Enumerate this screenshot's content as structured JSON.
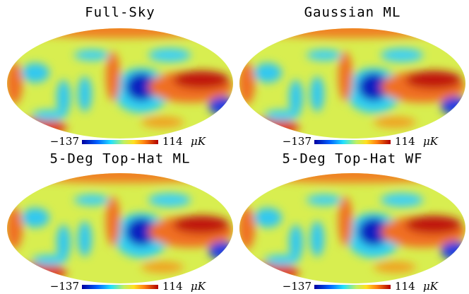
{
  "panels": [
    {
      "title": "Full-Sky",
      "colorbar": {
        "min": "−137",
        "max": "114",
        "unit": "μK"
      }
    },
    {
      "title": "Gaussian ML",
      "colorbar": {
        "min": "−137",
        "max": "114",
        "unit": "μK"
      }
    },
    {
      "title": "5-Deg Top-Hat ML",
      "colorbar": {
        "min": "−137",
        "max": "114",
        "unit": "μK"
      }
    },
    {
      "title": "5-Deg Top-Hat WF",
      "colorbar": {
        "min": "−137",
        "max": "114",
        "unit": "μK"
      }
    }
  ]
}
